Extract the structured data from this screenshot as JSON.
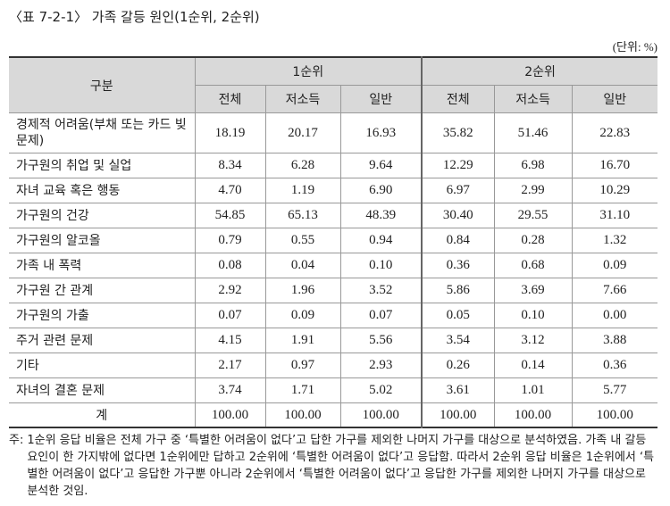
{
  "header": {
    "title": "〈표 7-2-1〉 가족 갈등 원인(1순위, 2순위)",
    "unit": "(단위: %)"
  },
  "table": {
    "corner": "구분",
    "groups": [
      "1순위",
      "2순위"
    ],
    "subheaders": [
      "전체",
      "저소득",
      "일반",
      "전체",
      "저소득",
      "일반"
    ],
    "rows": [
      [
        "경제적 어려움(부채 또는 카드 빚 문제)",
        "18.19",
        "20.17",
        "16.93",
        "35.82",
        "51.46",
        "22.83"
      ],
      [
        "가구원의 취업 및 실업",
        "8.34",
        "6.28",
        "9.64",
        "12.29",
        "6.98",
        "16.70"
      ],
      [
        "자녀 교육 혹은 행동",
        "4.70",
        "1.19",
        "6.90",
        "6.97",
        "2.99",
        "10.29"
      ],
      [
        "가구원의 건강",
        "54.85",
        "65.13",
        "48.39",
        "30.40",
        "29.55",
        "31.10"
      ],
      [
        "가구원의 알코올",
        "0.79",
        "0.55",
        "0.94",
        "0.84",
        "0.28",
        "1.32"
      ],
      [
        "가족 내 폭력",
        "0.08",
        "0.04",
        "0.10",
        "0.36",
        "0.68",
        "0.09"
      ],
      [
        "가구원 간 관계",
        "2.92",
        "1.96",
        "3.52",
        "5.86",
        "3.69",
        "7.66"
      ],
      [
        "가구원의 가출",
        "0.07",
        "0.09",
        "0.07",
        "0.05",
        "0.10",
        "0.00"
      ],
      [
        "주거 관련 문제",
        "4.15",
        "1.91",
        "5.56",
        "3.54",
        "3.12",
        "3.88"
      ],
      [
        "기타",
        "2.17",
        "0.97",
        "2.93",
        "0.26",
        "0.14",
        "0.36"
      ],
      [
        "자녀의 결혼 문제",
        "3.74",
        "1.71",
        "5.02",
        "3.61",
        "1.01",
        "5.77"
      ]
    ],
    "total": [
      "계",
      "100.00",
      "100.00",
      "100.00",
      "100.00",
      "100.00",
      "100.00"
    ]
  },
  "notes": {
    "prefix": "주:",
    "text": "1순위 응답 비율은 전체 가구 중 ‘특별한 어려움이 없다’고 답한 가구를 제외한 나머지 가구를 대상으로 분석하였음. 가족 내 갈등 요인이 한 가지밖에 없다면 1순위에만 답하고 2순위에 ‘특별한 어려움이 없다’고 응답함. 따라서 2순위 응답 비율은 1순위에서 ‘특별한 어려움이 없다’고 응답한 가구뿐 아니라 2순위에서 ‘특별한 어려움이 없다’고 응답한 가구를 제외한 나머지 가구를 대상으로 분석한 것임."
  }
}
